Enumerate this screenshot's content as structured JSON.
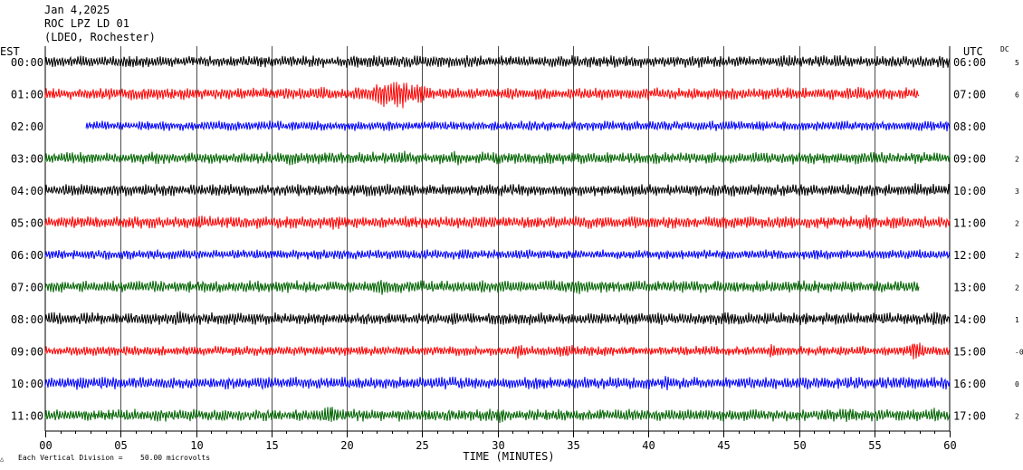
{
  "header": {
    "date": "Jan 4,2025",
    "station": "ROC LPZ LD 01",
    "source": "(LDEO, Rochester)"
  },
  "chart_data": {
    "type": "line",
    "title": "Jan 4,2025",
    "subtitle": "ROC LPZ LD 01 (LDEO, Rochester)",
    "left_axis_title": "EST",
    "right_axis_title": "UTC",
    "dc_title": "DC",
    "xlabel": "TIME (MINUTES)",
    "xlim": [
      0,
      60
    ],
    "x_ticks": [
      "00",
      "05",
      "10",
      "15",
      "20",
      "25",
      "30",
      "35",
      "40",
      "45",
      "50",
      "55",
      "60"
    ],
    "vertical_division_note": "Each Vertical Division =",
    "vertical_division_value": "50.00 microvolts",
    "corner_mark": "△",
    "grid": true,
    "colors": {
      "black": "#000000",
      "red": "#ff0000",
      "blue": "#0000ff",
      "green": "#006400"
    },
    "rows": [
      {
        "est": "00:00",
        "utc": "06:00",
        "dc": "5",
        "color": "#000000",
        "start": 0,
        "end": 60,
        "amp": 5,
        "events": []
      },
      {
        "est": "01:00",
        "utc": "07:00",
        "dc": "6",
        "color": "#ff0000",
        "start": 0,
        "end": 58,
        "amp": 5,
        "events": [
          [
            18.2,
            0.7,
            10
          ],
          [
            20.8,
            0.6,
            10
          ],
          [
            22.3,
            0.9,
            16
          ],
          [
            23.5,
            0.9,
            18
          ],
          [
            24.8,
            1.2,
            12
          ],
          [
            54,
            0.6,
            8
          ]
        ]
      },
      {
        "est": "02:00",
        "utc": "08:00",
        "dc": "",
        "color": "#0000ff",
        "start": 2.7,
        "end": 60,
        "amp": 4,
        "events": [
          [
            47.5,
            0.6,
            7
          ],
          [
            59.8,
            0.4,
            7
          ]
        ]
      },
      {
        "est": "03:00",
        "utc": "09:00",
        "dc": "2",
        "color": "#006400",
        "start": 0,
        "end": 60,
        "amp": 5,
        "events": [
          [
            16.2,
            0.5,
            9
          ],
          [
            23.7,
            0.6,
            9
          ],
          [
            27.2,
            0.6,
            9
          ],
          [
            44.3,
            0.4,
            8
          ]
        ]
      },
      {
        "est": "04:00",
        "utc": "10:00",
        "dc": "3",
        "color": "#000000",
        "start": 0,
        "end": 60,
        "amp": 5,
        "events": [
          [
            21.7,
            0.5,
            8
          ],
          [
            57.8,
            0.7,
            9
          ]
        ]
      },
      {
        "est": "05:00",
        "utc": "11:00",
        "dc": "2",
        "color": "#ff0000",
        "start": 0,
        "end": 60,
        "amp": 5,
        "events": [
          [
            10.3,
            0.6,
            8
          ],
          [
            19.3,
            0.8,
            9
          ],
          [
            39,
            0.6,
            8
          ],
          [
            54.6,
            0.6,
            10
          ]
        ]
      },
      {
        "est": "06:00",
        "utc": "12:00",
        "dc": "2",
        "color": "#0000ff",
        "start": 0,
        "end": 60,
        "amp": 4,
        "events": [
          [
            27.6,
            0.4,
            8
          ],
          [
            51.2,
            0.5,
            7
          ]
        ]
      },
      {
        "est": "07:00",
        "utc": "13:00",
        "dc": "2",
        "color": "#006400",
        "start": 0,
        "end": 58,
        "amp": 5,
        "events": [
          [
            22.3,
            0.8,
            11
          ],
          [
            35.3,
            0.6,
            10
          ],
          [
            38.8,
            0.5,
            8
          ],
          [
            49,
            0.5,
            8
          ]
        ]
      },
      {
        "est": "08:00",
        "utc": "14:00",
        "dc": "1",
        "color": "#000000",
        "start": 0,
        "end": 60,
        "amp": 5,
        "events": [
          [
            9,
            0.8,
            10
          ],
          [
            27,
            0.5,
            8
          ],
          [
            45.2,
            0.5,
            10
          ],
          [
            59.2,
            0.6,
            10
          ]
        ]
      },
      {
        "est": "09:00",
        "utc": "15:00",
        "dc": "-0",
        "color": "#ff0000",
        "start": 0,
        "end": 60,
        "amp": 4,
        "events": [
          [
            31.5,
            0.7,
            9
          ],
          [
            34.5,
            0.9,
            9
          ],
          [
            48.4,
            0.7,
            9
          ],
          [
            57.8,
            0.6,
            13
          ]
        ]
      },
      {
        "est": "10:00",
        "utc": "16:00",
        "dc": "0",
        "color": "#0000ff",
        "start": 0,
        "end": 60,
        "amp": 5,
        "events": [
          [
            2.3,
            0.6,
            9
          ],
          [
            14.4,
            0.6,
            10
          ],
          [
            41.2,
            0.6,
            9
          ]
        ]
      },
      {
        "est": "11:00",
        "utc": "17:00",
        "dc": "2",
        "color": "#006400",
        "start": 0,
        "end": 60,
        "amp": 5,
        "events": [
          [
            18.8,
            0.7,
            12
          ],
          [
            30.2,
            0.5,
            10
          ],
          [
            53.3,
            0.5,
            9
          ],
          [
            59,
            0.6,
            9
          ]
        ]
      }
    ]
  }
}
